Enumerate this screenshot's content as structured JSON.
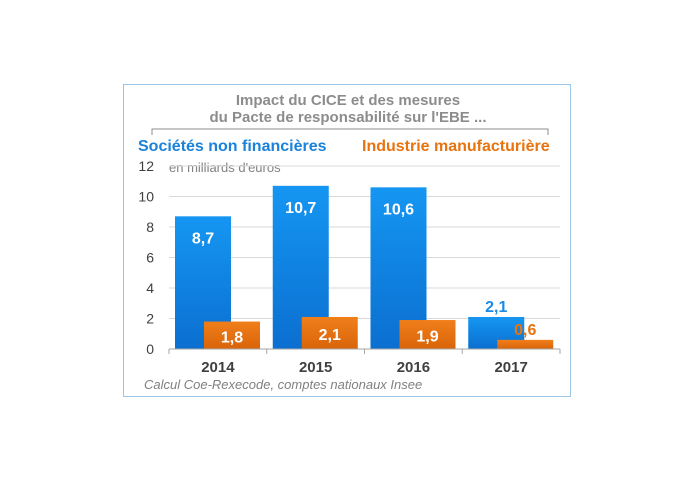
{
  "chart_data": {
    "type": "bar",
    "title_line1": "Impact du CICE et des mesures",
    "title_line2": "du Pacte de responsabilité sur l'EBE ...",
    "unit_label": "en milliards d'euros",
    "source": "Calcul Coe-Rexecode, comptes nationaux Insee",
    "categories": [
      "2014",
      "2015",
      "2016",
      "2017"
    ],
    "yticks": [
      "0",
      "2",
      "4",
      "6",
      "8",
      "10",
      "12"
    ],
    "ylim": [
      0,
      12
    ],
    "grid": true,
    "series": [
      {
        "name": "Sociétés non financières",
        "color": "#1a8ae6",
        "values": [
          8.7,
          10.7,
          10.6,
          2.1
        ],
        "labels": [
          "8,7",
          "10,7",
          "10,6",
          "2,1"
        ]
      },
      {
        "name": "Industrie manufacturière",
        "color": "#e8730f",
        "values": [
          1.8,
          2.1,
          1.9,
          0.6
        ],
        "labels": [
          "1,8",
          "2,1",
          "1,9",
          "0,6"
        ]
      }
    ]
  }
}
